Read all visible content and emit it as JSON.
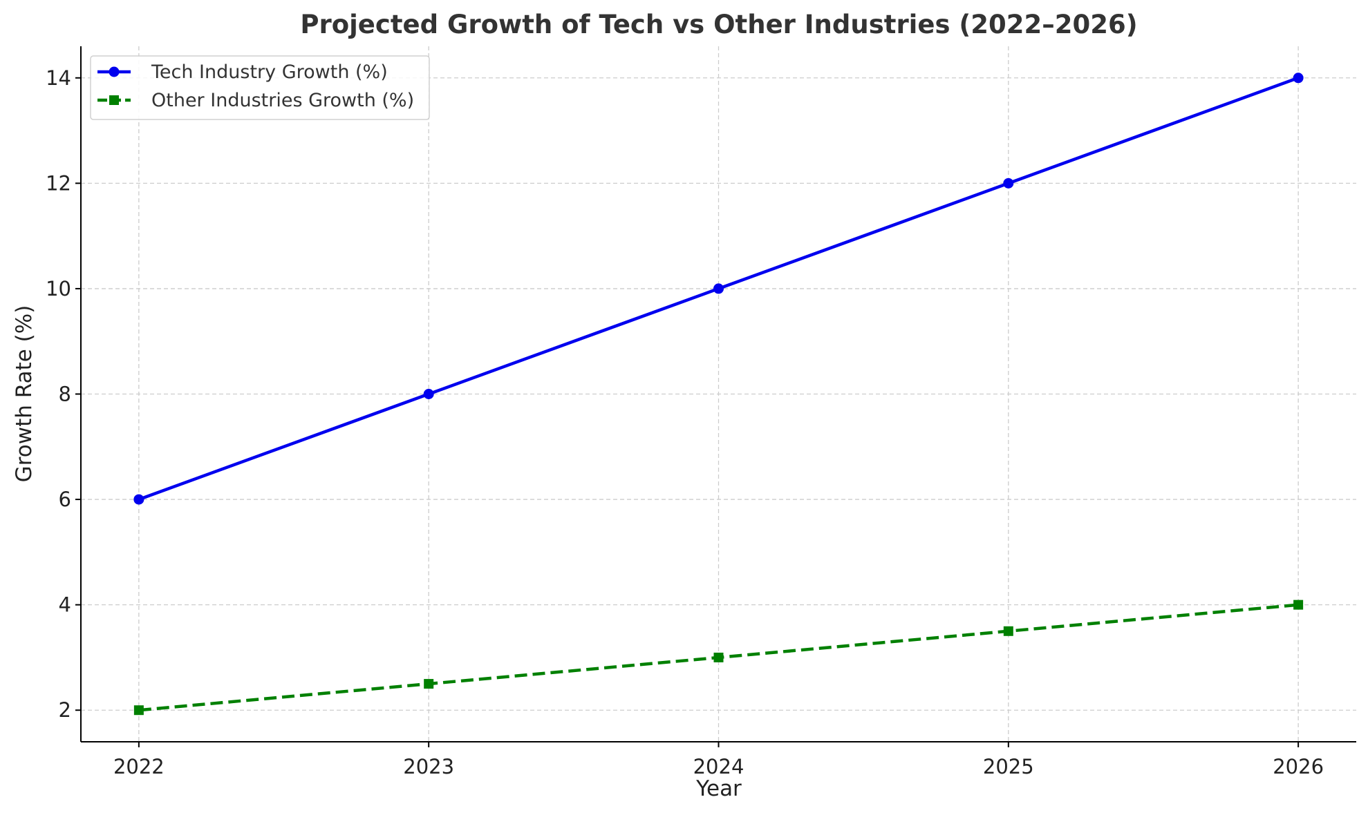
{
  "chart_data": {
    "type": "line",
    "title": "Projected Growth of Tech vs Other Industries (2022–2026)",
    "xlabel": "Year",
    "ylabel": "Growth Rate (%)",
    "x": [
      2022,
      2023,
      2024,
      2025,
      2026
    ],
    "x_tick_labels": [
      "2022",
      "2023",
      "2024",
      "2025",
      "2026"
    ],
    "y_ticks": [
      2,
      4,
      6,
      8,
      10,
      12,
      14
    ],
    "y_tick_labels": [
      "2",
      "4",
      "6",
      "8",
      "10",
      "12",
      "14"
    ],
    "xlim": [
      2021.8,
      2026.2
    ],
    "ylim": [
      1.4,
      14.6
    ],
    "grid": true,
    "legend_position": "top-left",
    "series": [
      {
        "name": "Tech Industry Growth (%)",
        "values": [
          6,
          8,
          10,
          12,
          14
        ],
        "color": "#0000ee",
        "marker": "circle",
        "line_style": "solid"
      },
      {
        "name": "Other Industries Growth (%)",
        "values": [
          2,
          2.5,
          3,
          3.5,
          4
        ],
        "color": "#008000",
        "marker": "square",
        "line_style": "dashed"
      }
    ]
  }
}
